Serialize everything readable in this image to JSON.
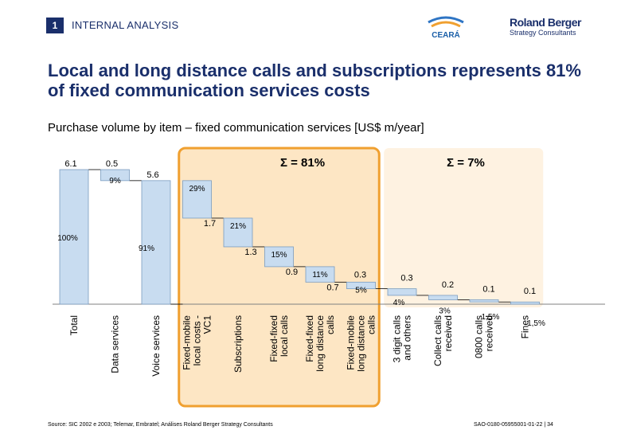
{
  "header": {
    "section_number": "1",
    "section_title": "INTERNAL ANALYSIS",
    "logo_ceara_text": "CEARÁ",
    "logo_rb_name": "Roland Berger",
    "logo_rb_sub": "Strategy Consultants"
  },
  "title": "Local and long distance calls and subscriptions represents 81% of fixed communication services costs",
  "subtitle": "Purchase volume by item – fixed communication services [US$ m/year]",
  "chart_data": {
    "type": "bar",
    "subtype": "waterfall",
    "unit": "US$ m/year",
    "categories": [
      "Total",
      "Data services",
      "Voice services",
      "Fixed-mobile local costs - VC1",
      "Subscriptions",
      "Fixed-fixed local calls",
      "Fixed-fixed long distance calls",
      "Fixed-mobile long distance calls",
      "3 digit calls and others",
      "Collect calls received",
      "0800 calls received",
      "Fines"
    ],
    "value_labels": [
      "6.1",
      "0.5",
      "5.6",
      "1.7",
      "1.3",
      "0.9",
      "0.7",
      "0.3",
      "0.3",
      "0.2",
      "0.1",
      "0.1"
    ],
    "values": [
      6.1,
      0.5,
      5.6,
      1.7,
      1.3,
      0.9,
      0.7,
      0.3,
      0.3,
      0.2,
      0.1,
      0.1
    ],
    "share_labels": [
      "100%",
      "9%",
      "91%",
      "29%",
      "21%",
      "15%",
      "11%",
      "5%",
      "4%",
      "3%",
      "1,5%",
      "1,5%"
    ],
    "groups": [
      {
        "label": "Σ = 81%",
        "color": "#f0a030",
        "fill": "#fde6c4"
      },
      {
        "label": "Σ = 7%",
        "color": "#f0a030",
        "fill": "#fde6c4"
      }
    ],
    "bar_color": "#c8dcf0",
    "bar_stroke": "#7a9cc0"
  },
  "footer": {
    "source": "Source: SIC 2002 e 2003; Telemar, Embratel; Análises Roland Berger Strategy Consultants",
    "code": "SAO-0180-05955001-01-22  |  34"
  }
}
